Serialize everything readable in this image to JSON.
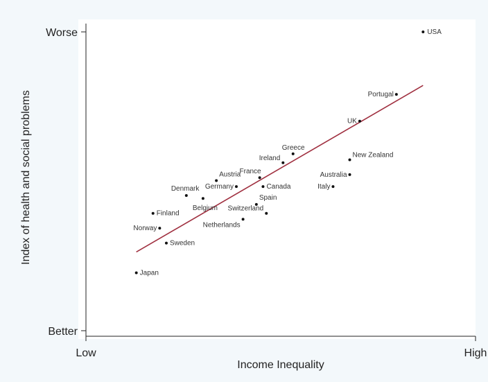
{
  "chart_data": {
    "type": "scatter",
    "title": "",
    "xlabel": "Income Inequality",
    "ylabel": "Index of health and social problems",
    "xlim": [
      0,
      100
    ],
    "ylim": [
      0,
      100
    ],
    "x_tick_labels": [
      {
        "value": 0,
        "label": "Low"
      },
      {
        "value": 100,
        "label": "High"
      }
    ],
    "y_tick_labels": [
      {
        "value": 0,
        "label": "Better"
      },
      {
        "value": 100,
        "label": "Worse"
      }
    ],
    "grid": false,
    "legend": "none",
    "colors": {
      "trend_line": "#a03040",
      "points": "#111111",
      "plot_bg": "#ffffff",
      "page_bg": "#f3f8fb"
    },
    "points": [
      {
        "name": "USA",
        "x": 93,
        "y": 100
      },
      {
        "name": "Portugal",
        "x": 85,
        "y": 79
      },
      {
        "name": "UK",
        "x": 74,
        "y": 70
      },
      {
        "name": "Greece",
        "x": 54,
        "y": 59
      },
      {
        "name": "New Zealand",
        "x": 71,
        "y": 57
      },
      {
        "name": "Ireland",
        "x": 51,
        "y": 56
      },
      {
        "name": "France",
        "x": 44,
        "y": 51
      },
      {
        "name": "Australia",
        "x": 71,
        "y": 52
      },
      {
        "name": "Italy",
        "x": 66,
        "y": 48
      },
      {
        "name": "Austria",
        "x": 31,
        "y": 50
      },
      {
        "name": "Germany",
        "x": 37,
        "y": 48
      },
      {
        "name": "Canada",
        "x": 45,
        "y": 48
      },
      {
        "name": "Denmark",
        "x": 22,
        "y": 45
      },
      {
        "name": "Belgium",
        "x": 27,
        "y": 44
      },
      {
        "name": "Spain",
        "x": 43,
        "y": 42
      },
      {
        "name": "Switzerland",
        "x": 46,
        "y": 39
      },
      {
        "name": "Netherlands",
        "x": 39,
        "y": 37
      },
      {
        "name": "Finland",
        "x": 12,
        "y": 39
      },
      {
        "name": "Norway",
        "x": 14,
        "y": 34
      },
      {
        "name": "Sweden",
        "x": 16,
        "y": 29
      },
      {
        "name": "Japan",
        "x": 7,
        "y": 19
      }
    ],
    "trend_line": {
      "x": [
        7,
        93
      ],
      "y": [
        26,
        82
      ]
    }
  }
}
